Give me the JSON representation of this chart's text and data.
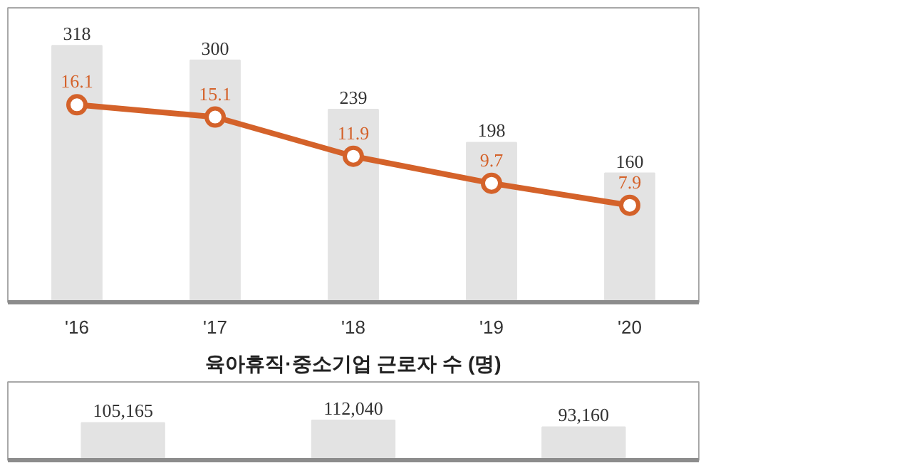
{
  "chart_data": [
    {
      "type": "bar",
      "categories": [
        "'16",
        "'17",
        "'18",
        "'19",
        "'20"
      ],
      "series": [
        {
          "name": null,
          "type": "bar",
          "color": "#e3e3e3",
          "values": [
            318,
            300,
            239,
            198,
            160
          ]
        },
        {
          "name": null,
          "type": "line",
          "axis": "y2",
          "color": "#d4622a",
          "values": [
            16.1,
            15.1,
            11.9,
            9.7,
            7.9
          ]
        }
      ],
      "ylim": [
        0,
        365
      ],
      "y2lim": [
        0,
        24
      ],
      "data_labels": true,
      "tick_labels": "x",
      "grid": false,
      "marker": "circle",
      "line_style": "solid"
    },
    {
      "type": "bar",
      "title": "육아휴직·중소기업 근로자 수 (명)",
      "categories": [
        null,
        null,
        null
      ],
      "values": [
        105165,
        112040,
        93160
      ],
      "value_labels": [
        "105,165",
        "112,040",
        "93,160"
      ],
      "color": "#e3e3e3",
      "ylim": [
        0,
        220000
      ],
      "tick_labels": false,
      "grid": false
    }
  ]
}
